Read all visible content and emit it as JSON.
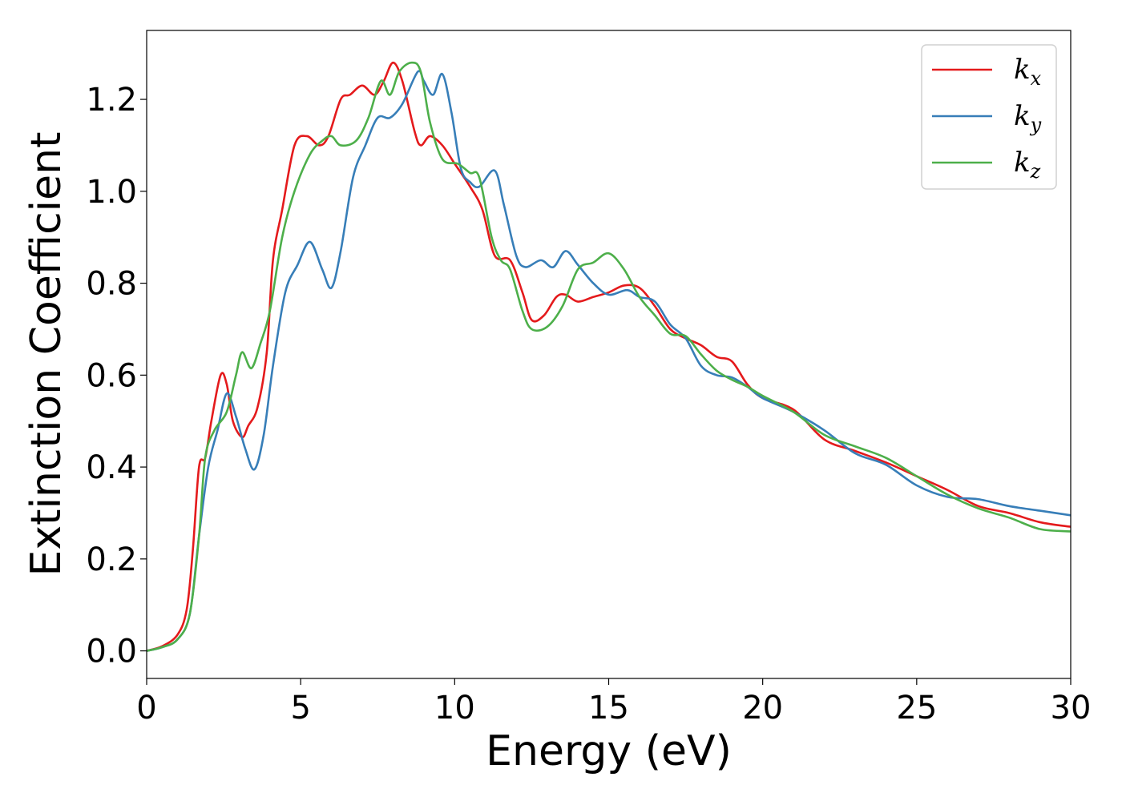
{
  "chart_data": {
    "type": "line",
    "xlabel": "Energy (eV)",
    "ylabel": "Extinction Coefficient",
    "xlim": [
      0,
      30
    ],
    "ylim": [
      -0.06,
      1.35
    ],
    "xticks": [
      0,
      5,
      10,
      15,
      20,
      25,
      30
    ],
    "yticks": [
      0.0,
      0.2,
      0.4,
      0.6,
      0.8,
      1.0,
      1.2
    ],
    "xtick_labels": [
      "0",
      "5",
      "10",
      "15",
      "20",
      "25",
      "30"
    ],
    "ytick_labels": [
      "0.0",
      "0.2",
      "0.4",
      "0.6",
      "0.8",
      "1.0",
      "1.2"
    ],
    "grid": false,
    "legend_position": "top-right",
    "series": [
      {
        "name": "k_x",
        "label_base": "k",
        "label_sub": "x",
        "color": "#e41a1c",
        "points": [
          [
            0,
            0
          ],
          [
            0.5,
            0.01
          ],
          [
            1,
            0.035
          ],
          [
            1.3,
            0.09
          ],
          [
            1.5,
            0.22
          ],
          [
            1.7,
            0.4
          ],
          [
            1.9,
            0.42
          ],
          [
            2.1,
            0.5
          ],
          [
            2.4,
            0.6
          ],
          [
            2.6,
            0.58
          ],
          [
            2.8,
            0.5
          ],
          [
            3.1,
            0.465
          ],
          [
            3.3,
            0.49
          ],
          [
            3.6,
            0.53
          ],
          [
            3.9,
            0.65
          ],
          [
            4.1,
            0.85
          ],
          [
            4.4,
            0.96
          ],
          [
            4.8,
            1.1
          ],
          [
            5.2,
            1.12
          ],
          [
            5.6,
            1.1
          ],
          [
            5.9,
            1.12
          ],
          [
            6.3,
            1.2
          ],
          [
            6.6,
            1.21
          ],
          [
            7.0,
            1.23
          ],
          [
            7.4,
            1.21
          ],
          [
            7.7,
            1.24
          ],
          [
            8.0,
            1.28
          ],
          [
            8.3,
            1.24
          ],
          [
            8.7,
            1.13
          ],
          [
            8.9,
            1.1
          ],
          [
            9.2,
            1.12
          ],
          [
            9.6,
            1.1
          ],
          [
            10.0,
            1.06
          ],
          [
            10.5,
            1.01
          ],
          [
            10.9,
            0.96
          ],
          [
            11.3,
            0.86
          ],
          [
            11.8,
            0.85
          ],
          [
            12.2,
            0.78
          ],
          [
            12.5,
            0.72
          ],
          [
            12.9,
            0.73
          ],
          [
            13.3,
            0.77
          ],
          [
            13.6,
            0.775
          ],
          [
            14.0,
            0.76
          ],
          [
            14.5,
            0.77
          ],
          [
            15.0,
            0.78
          ],
          [
            15.5,
            0.795
          ],
          [
            16.0,
            0.79
          ],
          [
            16.5,
            0.75
          ],
          [
            17.0,
            0.7
          ],
          [
            17.5,
            0.68
          ],
          [
            18.0,
            0.665
          ],
          [
            18.5,
            0.64
          ],
          [
            19.0,
            0.63
          ],
          [
            19.5,
            0.58
          ],
          [
            20.0,
            0.55
          ],
          [
            21.0,
            0.525
          ],
          [
            22.0,
            0.46
          ],
          [
            23.0,
            0.435
          ],
          [
            24.0,
            0.41
          ],
          [
            25.0,
            0.38
          ],
          [
            26.0,
            0.35
          ],
          [
            27.0,
            0.315
          ],
          [
            28.0,
            0.3
          ],
          [
            29.0,
            0.28
          ],
          [
            30.0,
            0.27
          ]
        ]
      },
      {
        "name": "k_y",
        "label_base": "k",
        "label_sub": "y",
        "color": "#377eb8",
        "points": [
          [
            0,
            0
          ],
          [
            0.5,
            0.008
          ],
          [
            1,
            0.025
          ],
          [
            1.4,
            0.08
          ],
          [
            1.7,
            0.25
          ],
          [
            2.0,
            0.4
          ],
          [
            2.3,
            0.48
          ],
          [
            2.6,
            0.56
          ],
          [
            2.9,
            0.51
          ],
          [
            3.2,
            0.44
          ],
          [
            3.5,
            0.395
          ],
          [
            3.8,
            0.47
          ],
          [
            4.1,
            0.62
          ],
          [
            4.5,
            0.78
          ],
          [
            4.9,
            0.84
          ],
          [
            5.3,
            0.89
          ],
          [
            5.7,
            0.83
          ],
          [
            6.0,
            0.79
          ],
          [
            6.3,
            0.87
          ],
          [
            6.7,
            1.03
          ],
          [
            7.1,
            1.1
          ],
          [
            7.5,
            1.16
          ],
          [
            7.9,
            1.16
          ],
          [
            8.3,
            1.19
          ],
          [
            8.8,
            1.26
          ],
          [
            9.0,
            1.24
          ],
          [
            9.3,
            1.21
          ],
          [
            9.6,
            1.255
          ],
          [
            9.9,
            1.17
          ],
          [
            10.2,
            1.05
          ],
          [
            10.5,
            1.02
          ],
          [
            10.8,
            1.01
          ],
          [
            11.3,
            1.045
          ],
          [
            11.6,
            0.97
          ],
          [
            12.0,
            0.86
          ],
          [
            12.3,
            0.835
          ],
          [
            12.8,
            0.85
          ],
          [
            13.2,
            0.835
          ],
          [
            13.6,
            0.87
          ],
          [
            14.0,
            0.84
          ],
          [
            14.5,
            0.8
          ],
          [
            15.0,
            0.775
          ],
          [
            15.6,
            0.785
          ],
          [
            16.0,
            0.77
          ],
          [
            16.5,
            0.76
          ],
          [
            17.0,
            0.71
          ],
          [
            17.5,
            0.68
          ],
          [
            18.0,
            0.62
          ],
          [
            18.5,
            0.6
          ],
          [
            19.0,
            0.595
          ],
          [
            19.5,
            0.575
          ],
          [
            20.0,
            0.55
          ],
          [
            21.0,
            0.52
          ],
          [
            22.0,
            0.48
          ],
          [
            23.0,
            0.43
          ],
          [
            24.0,
            0.405
          ],
          [
            25.0,
            0.36
          ],
          [
            26.0,
            0.335
          ],
          [
            27.0,
            0.33
          ],
          [
            28.0,
            0.315
          ],
          [
            29.0,
            0.305
          ],
          [
            30.0,
            0.295
          ]
        ]
      },
      {
        "name": "k_z",
        "label_base": "k",
        "label_sub": "z",
        "color": "#4daf4a",
        "points": [
          [
            0,
            0
          ],
          [
            0.5,
            0.008
          ],
          [
            1,
            0.025
          ],
          [
            1.4,
            0.08
          ],
          [
            1.7,
            0.25
          ],
          [
            1.9,
            0.42
          ],
          [
            2.2,
            0.48
          ],
          [
            2.6,
            0.52
          ],
          [
            2.9,
            0.6
          ],
          [
            3.1,
            0.65
          ],
          [
            3.4,
            0.615
          ],
          [
            3.7,
            0.67
          ],
          [
            4.0,
            0.74
          ],
          [
            4.4,
            0.9
          ],
          [
            4.8,
            1.0
          ],
          [
            5.3,
            1.08
          ],
          [
            5.7,
            1.11
          ],
          [
            6.0,
            1.12
          ],
          [
            6.3,
            1.1
          ],
          [
            6.8,
            1.11
          ],
          [
            7.2,
            1.16
          ],
          [
            7.6,
            1.24
          ],
          [
            7.9,
            1.21
          ],
          [
            8.2,
            1.26
          ],
          [
            8.6,
            1.28
          ],
          [
            8.9,
            1.26
          ],
          [
            9.2,
            1.15
          ],
          [
            9.6,
            1.07
          ],
          [
            10.1,
            1.06
          ],
          [
            10.5,
            1.04
          ],
          [
            10.8,
            1.03
          ],
          [
            11.2,
            0.9
          ],
          [
            11.5,
            0.85
          ],
          [
            11.8,
            0.83
          ],
          [
            12.2,
            0.74
          ],
          [
            12.5,
            0.7
          ],
          [
            13.0,
            0.705
          ],
          [
            13.5,
            0.75
          ],
          [
            14.0,
            0.83
          ],
          [
            14.5,
            0.845
          ],
          [
            15.0,
            0.865
          ],
          [
            15.5,
            0.83
          ],
          [
            16.0,
            0.77
          ],
          [
            16.5,
            0.73
          ],
          [
            17.0,
            0.69
          ],
          [
            17.5,
            0.685
          ],
          [
            18.0,
            0.645
          ],
          [
            18.5,
            0.61
          ],
          [
            19.0,
            0.59
          ],
          [
            19.5,
            0.575
          ],
          [
            20.0,
            0.555
          ],
          [
            21.0,
            0.52
          ],
          [
            22.0,
            0.47
          ],
          [
            23.0,
            0.445
          ],
          [
            24.0,
            0.42
          ],
          [
            25.0,
            0.38
          ],
          [
            26.0,
            0.34
          ],
          [
            27.0,
            0.31
          ],
          [
            28.0,
            0.29
          ],
          [
            29.0,
            0.265
          ],
          [
            30.0,
            0.26
          ]
        ]
      }
    ]
  }
}
